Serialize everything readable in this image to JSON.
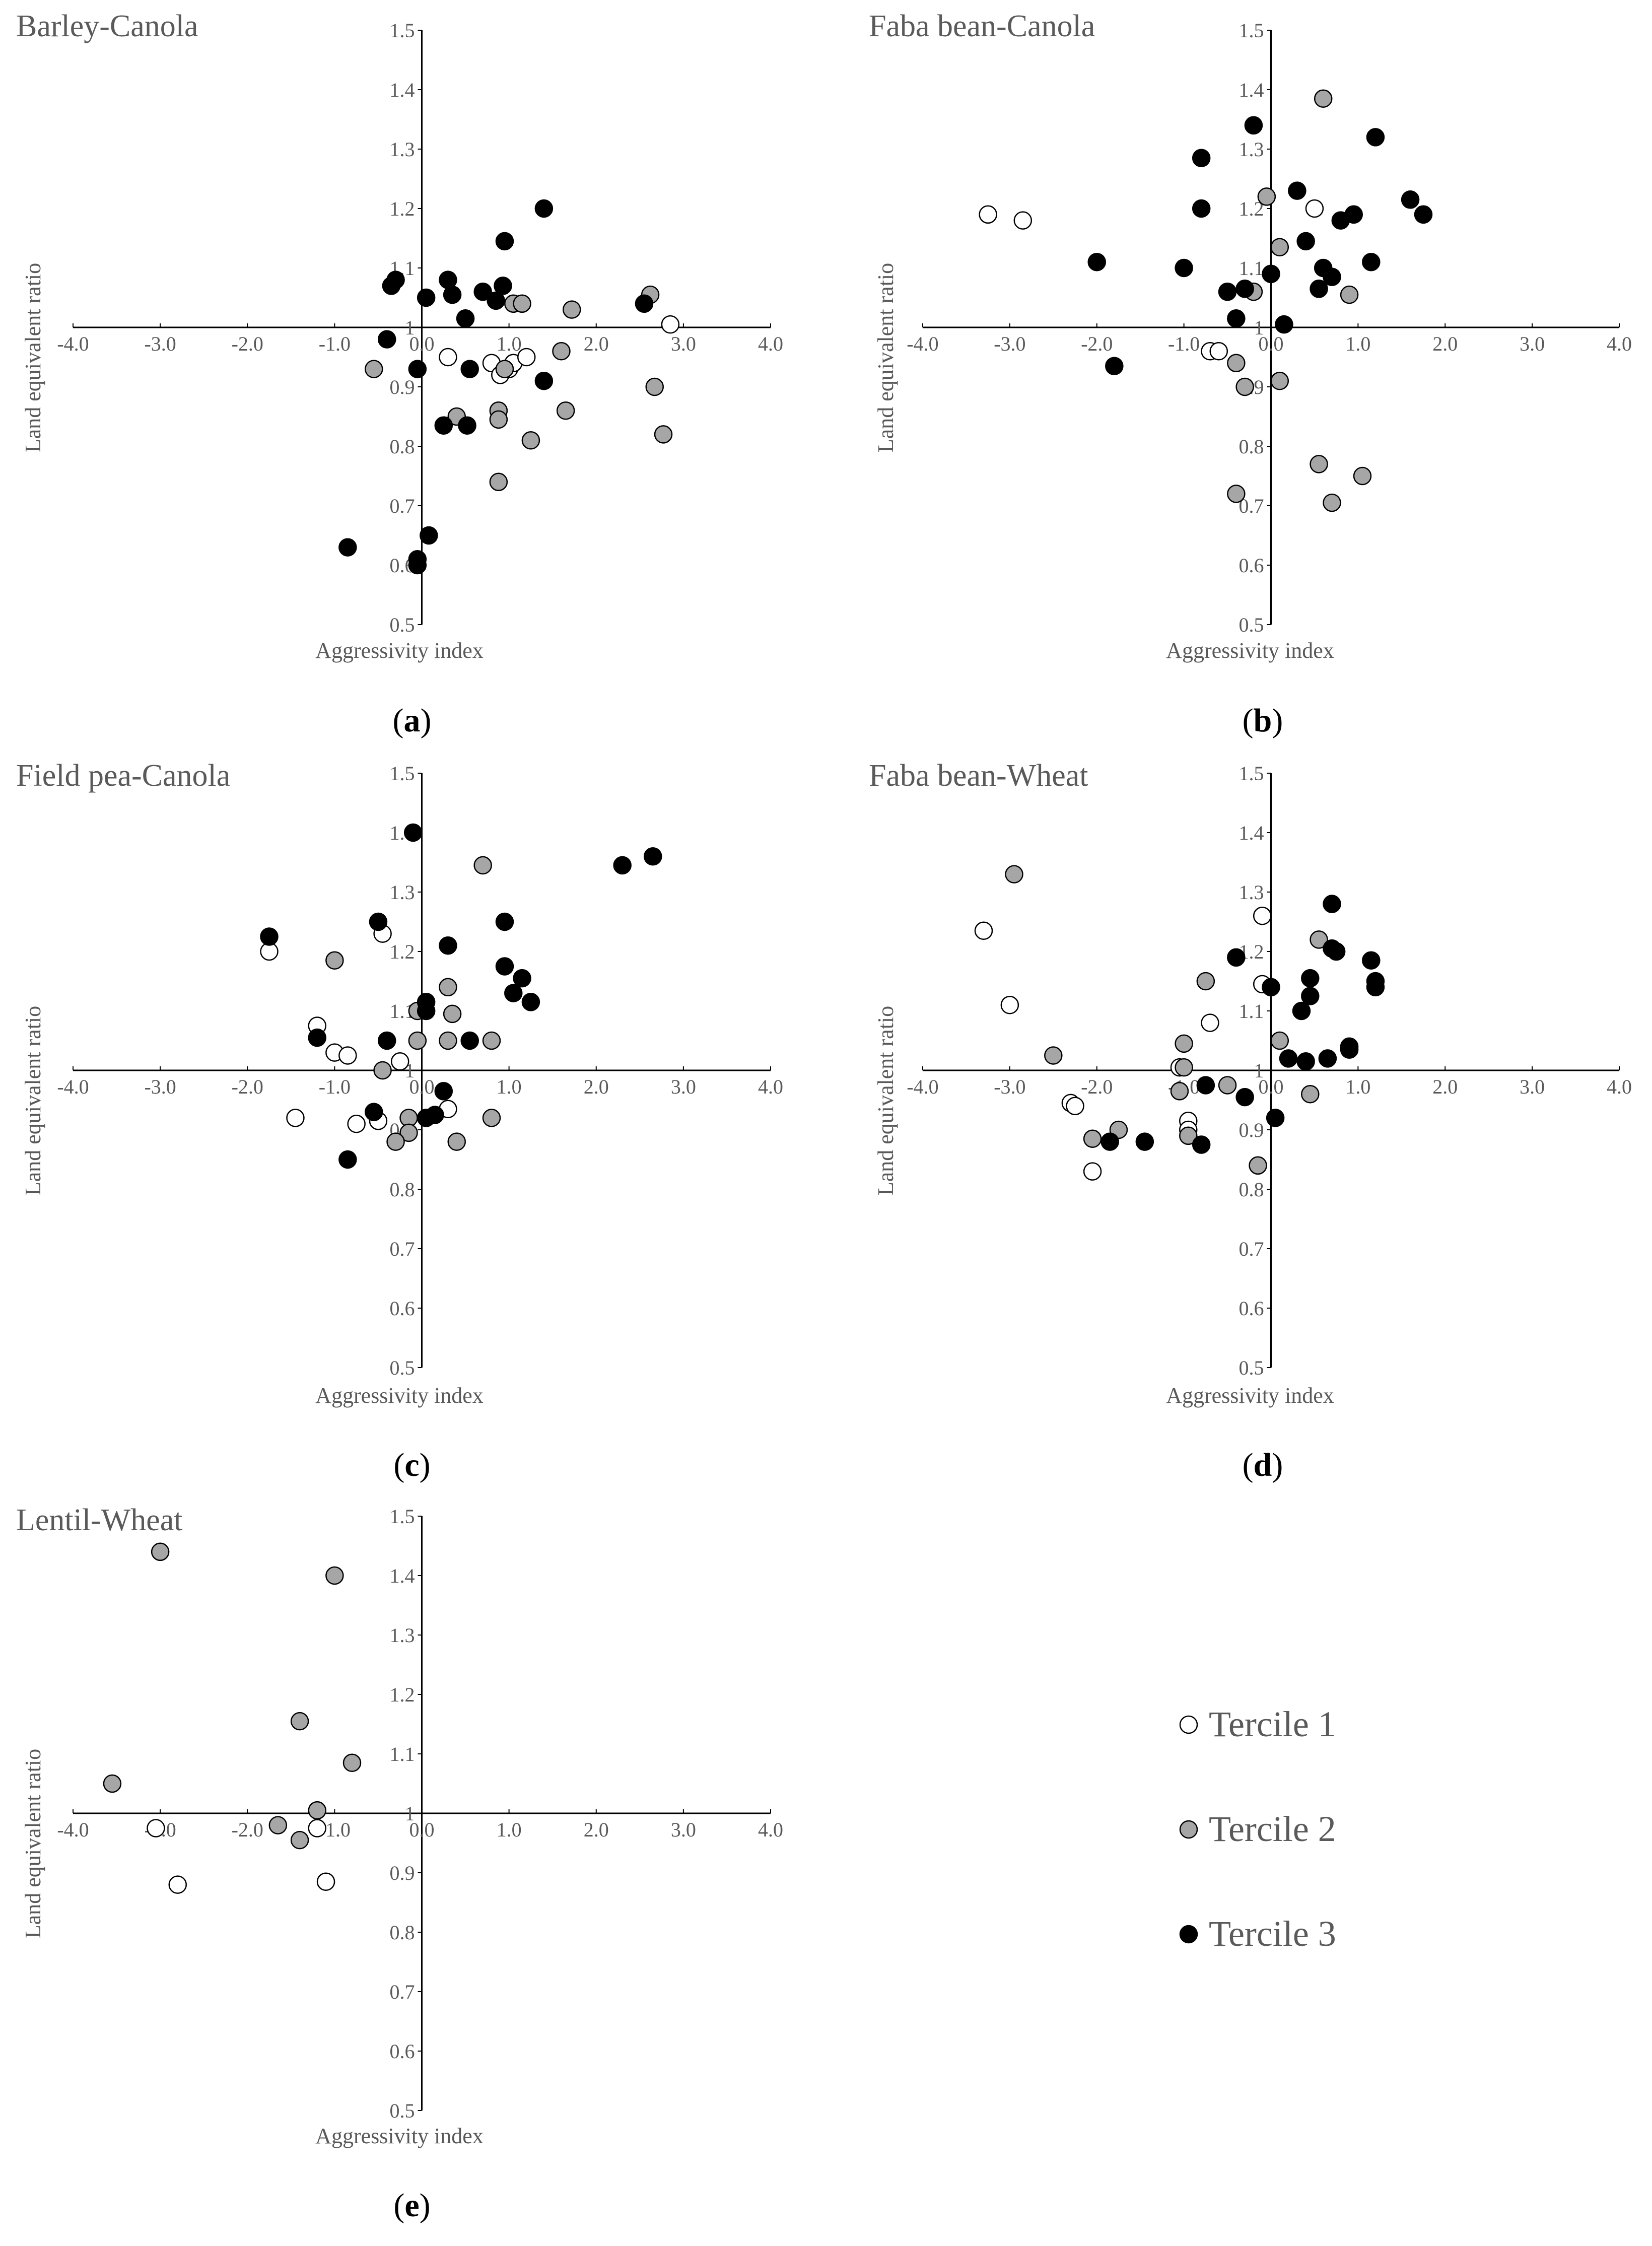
{
  "legend": {
    "items": [
      {
        "label": "Tercile 1",
        "fill": "#ffffff"
      },
      {
        "label": "Tercile 2",
        "fill": "#a6a6a6"
      },
      {
        "label": "Tercile 3",
        "fill": "#000000"
      }
    ]
  },
  "chart_data": [
    {
      "type": "scatter",
      "panel_label": "a",
      "title": "Barley-Canola",
      "xlabel": "Aggressivity index",
      "ylabel": "Land equivalent ratio",
      "xlim": [
        -4.0,
        4.0
      ],
      "ylim": [
        0.5,
        1.5
      ],
      "xticks": [
        "-4.0",
        "-3.0",
        "-2.0",
        "-1.0",
        "0.0",
        "1.0",
        "2.0",
        "3.0",
        "4.0"
      ],
      "yticks": [
        "0.5",
        "0.6",
        "0.7",
        "0.8",
        "0.9",
        "1",
        "1.1",
        "1.2",
        "1.3",
        "1.4",
        "1.5"
      ],
      "series": [
        {
          "name": "Tercile 1",
          "points": [
            [
              0.3,
              0.95
            ],
            [
              0.8,
              0.94
            ],
            [
              0.9,
              0.92
            ],
            [
              1.0,
              0.93
            ],
            [
              1.05,
              0.94
            ],
            [
              1.2,
              0.95
            ],
            [
              2.85,
              1.005
            ]
          ]
        },
        {
          "name": "Tercile 2",
          "points": [
            [
              -0.55,
              0.93
            ],
            [
              1.05,
              1.04
            ],
            [
              1.15,
              1.04
            ],
            [
              1.6,
              0.96
            ],
            [
              1.72,
              1.03
            ],
            [
              2.62,
              1.055
            ],
            [
              2.67,
              0.9
            ],
            [
              2.77,
              0.82
            ],
            [
              0.4,
              0.85
            ],
            [
              0.88,
              0.86
            ],
            [
              0.88,
              0.845
            ],
            [
              0.95,
              0.93
            ],
            [
              1.25,
              0.81
            ],
            [
              1.65,
              0.86
            ],
            [
              0.88,
              0.74
            ]
          ]
        },
        {
          "name": "Tercile 3",
          "points": [
            [
              -0.35,
              1.07
            ],
            [
              -0.3,
              1.08
            ],
            [
              0.05,
              1.05
            ],
            [
              0.3,
              1.08
            ],
            [
              0.35,
              1.055
            ],
            [
              0.5,
              1.015
            ],
            [
              0.7,
              1.06
            ],
            [
              0.85,
              1.045
            ],
            [
              0.93,
              1.07
            ],
            [
              0.95,
              1.145
            ],
            [
              1.4,
              1.2
            ],
            [
              2.55,
              1.04
            ],
            [
              -0.4,
              0.98
            ],
            [
              -0.05,
              0.93
            ],
            [
              0.55,
              0.93
            ],
            [
              1.4,
              0.91
            ],
            [
              0.25,
              0.835
            ],
            [
              0.52,
              0.835
            ],
            [
              0.08,
              0.65
            ],
            [
              -0.05,
              0.61
            ],
            [
              -0.05,
              0.6
            ],
            [
              -0.85,
              0.63
            ]
          ]
        }
      ]
    },
    {
      "type": "scatter",
      "panel_label": "b",
      "title": "Faba bean-Canola",
      "xlabel": "Aggressivity index",
      "ylabel": "Land equivalent ratio",
      "xlim": [
        -4.0,
        4.0
      ],
      "ylim": [
        0.5,
        1.5
      ],
      "xticks": [
        "-4.0",
        "-3.0",
        "-2.0",
        "-1.0",
        "0.0",
        "1.0",
        "2.0",
        "3.0",
        "4.0"
      ],
      "yticks": [
        "0.5",
        "0.6",
        "0.7",
        "0.8",
        "0.9",
        "1",
        "1.1",
        "1.2",
        "1.3",
        "1.4",
        "1.5"
      ],
      "series": [
        {
          "name": "Tercile 1",
          "points": [
            [
              -3.25,
              1.19
            ],
            [
              -2.85,
              1.18
            ],
            [
              -0.7,
              0.96
            ],
            [
              -0.6,
              0.96
            ],
            [
              0.5,
              1.2
            ]
          ]
        },
        {
          "name": "Tercile 2",
          "points": [
            [
              0.6,
              1.385
            ],
            [
              -0.05,
              1.22
            ],
            [
              0.1,
              1.135
            ],
            [
              -0.2,
              1.06
            ],
            [
              0.9,
              1.055
            ],
            [
              -0.4,
              0.94
            ],
            [
              -0.3,
              0.9
            ],
            [
              0.1,
              0.91
            ],
            [
              0.55,
              0.77
            ],
            [
              1.05,
              0.75
            ],
            [
              -0.4,
              0.72
            ],
            [
              0.7,
              0.705
            ]
          ]
        },
        {
          "name": "Tercile 3",
          "points": [
            [
              -0.2,
              1.34
            ],
            [
              1.2,
              1.32
            ],
            [
              -0.8,
              1.285
            ],
            [
              0.3,
              1.23
            ],
            [
              1.6,
              1.215
            ],
            [
              -0.8,
              1.2
            ],
            [
              1.75,
              1.19
            ],
            [
              0.95,
              1.19
            ],
            [
              0.8,
              1.18
            ],
            [
              0.4,
              1.145
            ],
            [
              -2.0,
              1.11
            ],
            [
              -1.0,
              1.1
            ],
            [
              1.15,
              1.11
            ],
            [
              0.6,
              1.1
            ],
            [
              0.0,
              1.09
            ],
            [
              0.7,
              1.085
            ],
            [
              0.55,
              1.065
            ],
            [
              -0.5,
              1.06
            ],
            [
              -0.3,
              1.065
            ],
            [
              -0.4,
              1.015
            ],
            [
              0.15,
              1.005
            ],
            [
              -1.8,
              0.935
            ]
          ]
        }
      ]
    },
    {
      "type": "scatter",
      "panel_label": "c",
      "title": "Field pea-Canola",
      "xlabel": "Aggressivity index",
      "ylabel": "Land equivalent ratio",
      "xlim": [
        -4.0,
        4.0
      ],
      "ylim": [
        0.5,
        1.5
      ],
      "xticks": [
        "-4.0",
        "-3.0",
        "-2.0",
        "-1.0",
        "0.0",
        "1.0",
        "2.0",
        "3.0",
        "4.0"
      ],
      "yticks": [
        "0.5",
        "0.6",
        "0.7",
        "0.8",
        "0.9",
        "1",
        "1.1",
        "1.2",
        "1.3",
        "1.4",
        "1.5"
      ],
      "series": [
        {
          "name": "Tercile 1",
          "points": [
            [
              -0.45,
              1.23
            ],
            [
              -1.75,
              1.2
            ],
            [
              -1.2,
              1.075
            ],
            [
              -1.0,
              1.03
            ],
            [
              -0.85,
              1.025
            ],
            [
              -0.25,
              1.015
            ],
            [
              -1.45,
              0.92
            ],
            [
              -0.75,
              0.91
            ],
            [
              -0.5,
              0.915
            ],
            [
              0.3,
              0.935
            ]
          ]
        },
        {
          "name": "Tercile 2",
          "points": [
            [
              0.7,
              1.345
            ],
            [
              -1.0,
              1.185
            ],
            [
              0.3,
              1.14
            ],
            [
              -0.05,
              1.1
            ],
            [
              0.35,
              1.095
            ],
            [
              -0.05,
              1.05
            ],
            [
              0.3,
              1.05
            ],
            [
              0.8,
              1.05
            ],
            [
              -0.45,
              1.0
            ],
            [
              -0.15,
              0.92
            ],
            [
              0.8,
              0.92
            ],
            [
              -0.15,
              0.895
            ],
            [
              -0.3,
              0.88
            ],
            [
              0.4,
              0.88
            ]
          ]
        },
        {
          "name": "Tercile 3",
          "points": [
            [
              -0.1,
              1.4
            ],
            [
              2.65,
              1.36
            ],
            [
              2.3,
              1.345
            ],
            [
              -0.5,
              1.25
            ],
            [
              0.95,
              1.25
            ],
            [
              -1.75,
              1.225
            ],
            [
              0.3,
              1.21
            ],
            [
              0.95,
              1.175
            ],
            [
              1.15,
              1.155
            ],
            [
              1.05,
              1.13
            ],
            [
              1.25,
              1.115
            ],
            [
              0.05,
              1.115
            ],
            [
              0.05,
              1.1
            ],
            [
              -1.2,
              1.055
            ],
            [
              -0.4,
              1.05
            ],
            [
              0.55,
              1.05
            ],
            [
              0.25,
              0.965
            ],
            [
              -0.55,
              0.93
            ],
            [
              0.15,
              0.925
            ],
            [
              0.05,
              0.92
            ],
            [
              -0.85,
              0.85
            ]
          ]
        }
      ]
    },
    {
      "type": "scatter",
      "panel_label": "d",
      "title": "Faba bean-Wheat",
      "xlabel": "Aggressivity index",
      "ylabel": "Land equivalent ratio",
      "xlim": [
        -4.0,
        4.0
      ],
      "ylim": [
        0.5,
        1.5
      ],
      "xticks": [
        "-4.0",
        "-3.0",
        "-2.0",
        "-1.0",
        "0.0",
        "1.0",
        "2.0",
        "3.0",
        "4.0"
      ],
      "yticks": [
        "0.5",
        "0.6",
        "0.7",
        "0.8",
        "0.9",
        "1",
        "1.1",
        "1.2",
        "1.3",
        "1.4",
        "1.5"
      ],
      "series": [
        {
          "name": "Tercile 1",
          "points": [
            [
              -3.3,
              1.235
            ],
            [
              -0.1,
              1.26
            ],
            [
              -3.0,
              1.11
            ],
            [
              -0.1,
              1.145
            ],
            [
              -0.7,
              1.08
            ],
            [
              -1.05,
              1.005
            ],
            [
              -2.3,
              0.945
            ],
            [
              -2.25,
              0.94
            ],
            [
              -0.95,
              0.915
            ],
            [
              -0.95,
              0.9
            ],
            [
              -2.05,
              0.83
            ]
          ]
        },
        {
          "name": "Tercile 2",
          "points": [
            [
              -2.95,
              1.33
            ],
            [
              0.55,
              1.22
            ],
            [
              -0.75,
              1.15
            ],
            [
              -1.0,
              1.045
            ],
            [
              -2.5,
              1.025
            ],
            [
              0.1,
              1.05
            ],
            [
              -1.0,
              1.005
            ],
            [
              -1.05,
              0.965
            ],
            [
              -0.5,
              0.975
            ],
            [
              -1.75,
              0.9
            ],
            [
              -2.05,
              0.885
            ],
            [
              -0.95,
              0.89
            ],
            [
              0.45,
              0.96
            ],
            [
              -0.15,
              0.84
            ]
          ]
        },
        {
          "name": "Tercile 3",
          "points": [
            [
              0.7,
              1.28
            ],
            [
              0.7,
              1.205
            ],
            [
              0.75,
              1.2
            ],
            [
              1.15,
              1.185
            ],
            [
              -0.4,
              1.19
            ],
            [
              0.45,
              1.155
            ],
            [
              1.2,
              1.15
            ],
            [
              1.2,
              1.14
            ],
            [
              0.0,
              1.14
            ],
            [
              0.45,
              1.125
            ],
            [
              0.35,
              1.1
            ],
            [
              0.9,
              1.04
            ],
            [
              0.9,
              1.035
            ],
            [
              0.2,
              1.02
            ],
            [
              0.65,
              1.02
            ],
            [
              0.4,
              1.015
            ],
            [
              -0.75,
              0.975
            ],
            [
              -0.3,
              0.955
            ],
            [
              0.05,
              0.92
            ],
            [
              -1.45,
              0.88
            ],
            [
              -1.85,
              0.88
            ],
            [
              -0.8,
              0.875
            ]
          ]
        }
      ]
    },
    {
      "type": "scatter",
      "panel_label": "e",
      "title": "Lentil-Wheat",
      "xlabel": "Aggressivity index",
      "ylabel": "Land equivalent ratio",
      "xlim": [
        -4.0,
        4.0
      ],
      "ylim": [
        0.5,
        1.5
      ],
      "xticks": [
        "-4.0",
        "-3.0",
        "-2.0",
        "-1.0",
        "0.0",
        "1.0",
        "2.0",
        "3.0",
        "4.0"
      ],
      "yticks": [
        "0.5",
        "0.6",
        "0.7",
        "0.8",
        "0.9",
        "1",
        "1.1",
        "1.2",
        "1.3",
        "1.4",
        "1.5"
      ],
      "series": [
        {
          "name": "Tercile 1",
          "points": [
            [
              -3.05,
              0.975
            ],
            [
              -2.8,
              0.88
            ],
            [
              -1.2,
              0.975
            ],
            [
              -1.1,
              0.885
            ]
          ]
        },
        {
          "name": "Tercile 2",
          "points": [
            [
              -3.0,
              1.44
            ],
            [
              -1.0,
              1.4
            ],
            [
              -1.4,
              1.155
            ],
            [
              -0.8,
              1.085
            ],
            [
              -3.55,
              1.05
            ],
            [
              -1.2,
              1.005
            ],
            [
              -1.65,
              0.98
            ],
            [
              -1.4,
              0.955
            ]
          ]
        },
        {
          "name": "Tercile 3",
          "points": []
        }
      ]
    }
  ]
}
